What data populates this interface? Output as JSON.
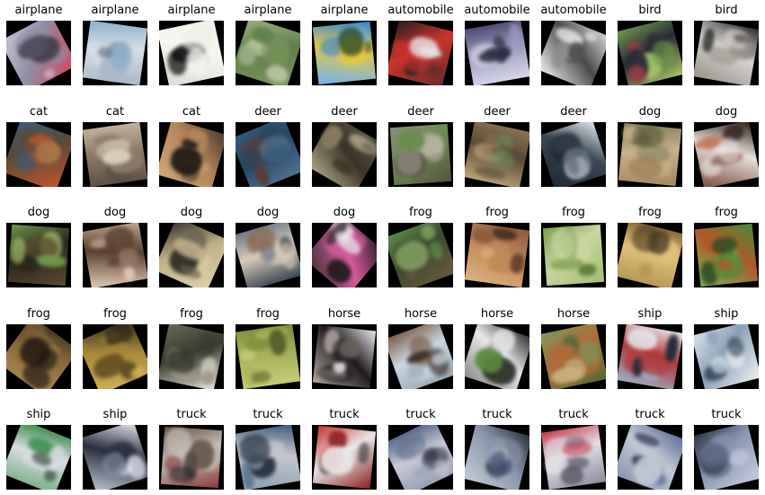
{
  "background": "#ffffff",
  "tiles": [
    {
      "label": "airplane",
      "rotation": -28,
      "colors": [
        "#c9c6d6",
        "#8f8ea6",
        "#3c3a48",
        "#d9435a"
      ]
    },
    {
      "label": "airplane",
      "rotation": 8,
      "colors": [
        "#8fb0cc",
        "#d6dee6",
        "#6d8197",
        "#a7b7c6"
      ]
    },
    {
      "label": "airplane",
      "rotation": -12,
      "colors": [
        "#eef0e8",
        "#f5f7f0",
        "#141414",
        "#d8dcd2"
      ]
    },
    {
      "label": "airplane",
      "rotation": 18,
      "colors": [
        "#9db386",
        "#5f7f46",
        "#c7d1b0",
        "#7b9660"
      ]
    },
    {
      "label": "airplane",
      "rotation": -6,
      "colors": [
        "#2f86d9",
        "#e4c64a",
        "#2e4b23",
        "#6fb4f0"
      ]
    },
    {
      "label": "automobile",
      "rotation": 14,
      "colors": [
        "#1e1c22",
        "#c9342a",
        "#e8e6ea",
        "#6a2c28"
      ]
    },
    {
      "label": "automobile",
      "rotation": -10,
      "colors": [
        "#4a4a72",
        "#9c9cc0",
        "#262638",
        "#d8d6e8"
      ]
    },
    {
      "label": "automobile",
      "rotation": 22,
      "colors": [
        "#dcdcdc",
        "#4a4a4a",
        "#8e8e8e",
        "#f2f2f2"
      ]
    },
    {
      "label": "bird",
      "rotation": -14,
      "colors": [
        "#6d9b4a",
        "#2a2a36",
        "#9c3c46",
        "#a8c66a"
      ]
    },
    {
      "label": "bird",
      "rotation": 10,
      "colors": [
        "#2c2a2a",
        "#d6d4d0",
        "#6b6560",
        "#9a948c"
      ]
    },
    {
      "label": "cat",
      "rotation": 20,
      "colors": [
        "#3a5b7a",
        "#5a4a38",
        "#a3774a",
        "#c6572a"
      ]
    },
    {
      "label": "cat",
      "rotation": -8,
      "colors": [
        "#c2b39e",
        "#8f7d6a",
        "#e1d5c3",
        "#5e5046"
      ]
    },
    {
      "label": "cat",
      "rotation": 16,
      "colors": [
        "#4a3a2e",
        "#b3855a",
        "#1e1814",
        "#d3a77a"
      ]
    },
    {
      "label": "deer",
      "rotation": -22,
      "colors": [
        "#355a7a",
        "#2a4660",
        "#5f3a30",
        "#4d7494"
      ]
    },
    {
      "label": "deer",
      "rotation": 30,
      "colors": [
        "#5e5848",
        "#3a3426",
        "#8a7c62",
        "#b2a78a"
      ]
    },
    {
      "label": "deer",
      "rotation": -4,
      "colors": [
        "#8c8a80",
        "#6a8c4e",
        "#bdb6a8",
        "#5a5244"
      ]
    },
    {
      "label": "deer",
      "rotation": 12,
      "colors": [
        "#8c7454",
        "#5a4a34",
        "#6b8c5a",
        "#c2a57a"
      ]
    },
    {
      "label": "deer",
      "rotation": -18,
      "colors": [
        "#e8ecf0",
        "#3a4654",
        "#7d8a98",
        "#1e2630"
      ]
    },
    {
      "label": "dog",
      "rotation": 6,
      "colors": [
        "#7e7e5a",
        "#c9b08a",
        "#5a5a3a",
        "#a68860"
      ]
    },
    {
      "label": "dog",
      "rotation": -12,
      "colors": [
        "#2a1a16",
        "#e8e0dc",
        "#c27a5a",
        "#7a4a3a"
      ]
    },
    {
      "label": "dog",
      "rotation": 4,
      "colors": [
        "#6f9a4a",
        "#2a261e",
        "#a7c46a",
        "#5a4a2e"
      ]
    },
    {
      "label": "dog",
      "rotation": -10,
      "colors": [
        "#c3a88e",
        "#5a3e30",
        "#9c8068",
        "#e2cdb8"
      ]
    },
    {
      "label": "dog",
      "rotation": 24,
      "colors": [
        "#2c2a24",
        "#c0b088",
        "#6a6450",
        "#e0d2a8"
      ]
    },
    {
      "label": "dog",
      "rotation": -16,
      "colors": [
        "#6a7a8c",
        "#d8cbb6",
        "#8a6a4e",
        "#3a4654"
      ]
    },
    {
      "label": "dog",
      "rotation": 40,
      "colors": [
        "#1e1a1c",
        "#d65a9c",
        "#e8e8ec",
        "#3a3234"
      ]
    },
    {
      "label": "frog",
      "rotation": -20,
      "colors": [
        "#5e8c4a",
        "#3a4a2c",
        "#8fb06a",
        "#6a5a3c"
      ]
    },
    {
      "label": "frog",
      "rotation": 8,
      "colors": [
        "#8a5a3a",
        "#c08a5a",
        "#4a2e1e",
        "#e0b080"
      ]
    },
    {
      "label": "frog",
      "rotation": -4,
      "colors": [
        "#7a9c4a",
        "#c8d6a0",
        "#4e6a2c",
        "#a3bf70"
      ]
    },
    {
      "label": "frog",
      "rotation": 14,
      "colors": [
        "#8a6a3a",
        "#e0c07a",
        "#4a3a22",
        "#b89858"
      ]
    },
    {
      "label": "frog",
      "rotation": -6,
      "colors": [
        "#4a8a3a",
        "#b05a2a",
        "#2a4a22",
        "#7ab05a"
      ]
    },
    {
      "label": "frog",
      "rotation": 36,
      "colors": [
        "#3a2e1e",
        "#8a6a3a",
        "#1e1610",
        "#b08a52"
      ]
    },
    {
      "label": "frog",
      "rotation": -24,
      "colors": [
        "#2a2418",
        "#a88a3a",
        "#5a4a22",
        "#d2b254"
      ]
    },
    {
      "label": "frog",
      "rotation": 12,
      "colors": [
        "#6a6a5a",
        "#3a3a2e",
        "#9c9480",
        "#e8e8e0"
      ]
    },
    {
      "label": "frog",
      "rotation": -8,
      "colors": [
        "#7a8a3a",
        "#a6b05a",
        "#4e5a22",
        "#c8d07a"
      ]
    },
    {
      "label": "horse",
      "rotation": 6,
      "colors": [
        "#e8e8ec",
        "#1e1a1c",
        "#6a625c",
        "#b4aaa2"
      ]
    },
    {
      "label": "horse",
      "rotation": -20,
      "colors": [
        "#7a5a46",
        "#c9d6e0",
        "#3a2a22",
        "#9aa6b2"
      ]
    },
    {
      "label": "horse",
      "rotation": 18,
      "colors": [
        "#2a2a2a",
        "#e8e8e8",
        "#5a8a3a",
        "#8a8a8a"
      ]
    },
    {
      "label": "horse",
      "rotation": -12,
      "colors": [
        "#7a9a5a",
        "#b06a3a",
        "#c8b080",
        "#4e6a34"
      ]
    },
    {
      "label": "ship",
      "rotation": 10,
      "colors": [
        "#e8ecf0",
        "#b03a3a",
        "#1e2a3a",
        "#9ab0c6"
      ]
    },
    {
      "label": "ship",
      "rotation": -14,
      "colors": [
        "#dce4ec",
        "#8aa0b8",
        "#2a3a4e",
        "#f0f2f4"
      ]
    },
    {
      "label": "ship",
      "rotation": 22,
      "colors": [
        "#3a8a4a",
        "#d8dde0",
        "#1e3a28",
        "#7ab08a"
      ]
    },
    {
      "label": "ship",
      "rotation": -18,
      "colors": [
        "#e8ecf4",
        "#2a2e3e",
        "#8a94ac",
        "#c4cad8"
      ]
    },
    {
      "label": "truck",
      "rotation": 4,
      "colors": [
        "#5a4a3e",
        "#c8c0b8",
        "#2a2a2e",
        "#8a3a3a"
      ]
    },
    {
      "label": "truck",
      "rotation": -10,
      "colors": [
        "#3a5a7a",
        "#c6c6cc",
        "#1e2a38",
        "#8aa0b6"
      ]
    },
    {
      "label": "truck",
      "rotation": 6,
      "colors": [
        "#c8302a",
        "#e8e8e8",
        "#3a3a3a",
        "#8a1e1e"
      ]
    },
    {
      "label": "truck",
      "rotation": -26,
      "colors": [
        "#5a6a8a",
        "#c8cad6",
        "#2a2e3e",
        "#9aa0b8"
      ]
    },
    {
      "label": "truck",
      "rotation": 14,
      "colors": [
        "#2a2e3a",
        "#8a96ac",
        "#4a5a7a",
        "#c6ccd8"
      ]
    },
    {
      "label": "truck",
      "rotation": -8,
      "colors": [
        "#c83a4a",
        "#e0e0e6",
        "#4a4a5a",
        "#8a8a9c"
      ]
    },
    {
      "label": "truck",
      "rotation": 20,
      "colors": [
        "#5a6e9a",
        "#c2c8d6",
        "#2a344e",
        "#8a94b0"
      ]
    },
    {
      "label": "truck",
      "rotation": -14,
      "colors": [
        "#2a3240",
        "#8a96b4",
        "#5a6480",
        "#c6ccdc"
      ]
    }
  ]
}
